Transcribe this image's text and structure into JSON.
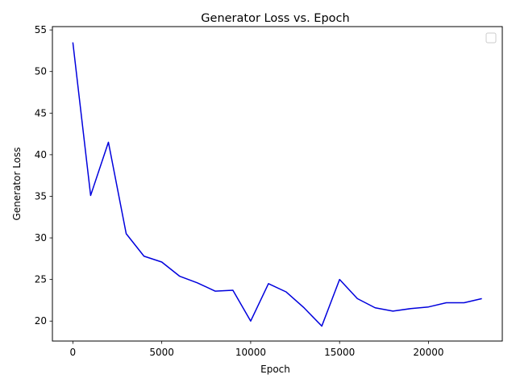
{
  "chart_data": {
    "type": "line",
    "title": "Generator Loss vs. Epoch",
    "xlabel": "Epoch",
    "ylabel": "Generator Loss",
    "xlim": [
      -1150,
      24150
    ],
    "ylim": [
      17.6,
      55.4
    ],
    "xticks": [
      0,
      5000,
      10000,
      15000,
      20000
    ],
    "xtick_labels": [
      "0",
      "5000",
      "10000",
      "15000",
      "20000"
    ],
    "yticks": [
      20,
      25,
      30,
      35,
      40,
      45,
      50,
      55
    ],
    "ytick_labels": [
      "20",
      "25",
      "30",
      "35",
      "40",
      "45",
      "50",
      "55"
    ],
    "grid": false,
    "legend": {
      "placement": "top-right",
      "entries": []
    },
    "series": [
      {
        "color": "#0000dd",
        "x": [
          0,
          1000,
          2000,
          3000,
          4000,
          5000,
          6000,
          7000,
          8000,
          9000,
          10000,
          11000,
          12000,
          13000,
          14000,
          15000,
          16000,
          17000,
          18000,
          19000,
          20000,
          21000,
          22000,
          23000
        ],
        "y": [
          53.5,
          35.1,
          41.5,
          30.5,
          27.8,
          27.1,
          25.4,
          24.6,
          23.6,
          23.7,
          20.0,
          24.5,
          23.5,
          21.6,
          19.4,
          25.0,
          22.7,
          21.6,
          21.2,
          21.5,
          21.7,
          22.2,
          22.2,
          22.7
        ]
      }
    ]
  }
}
